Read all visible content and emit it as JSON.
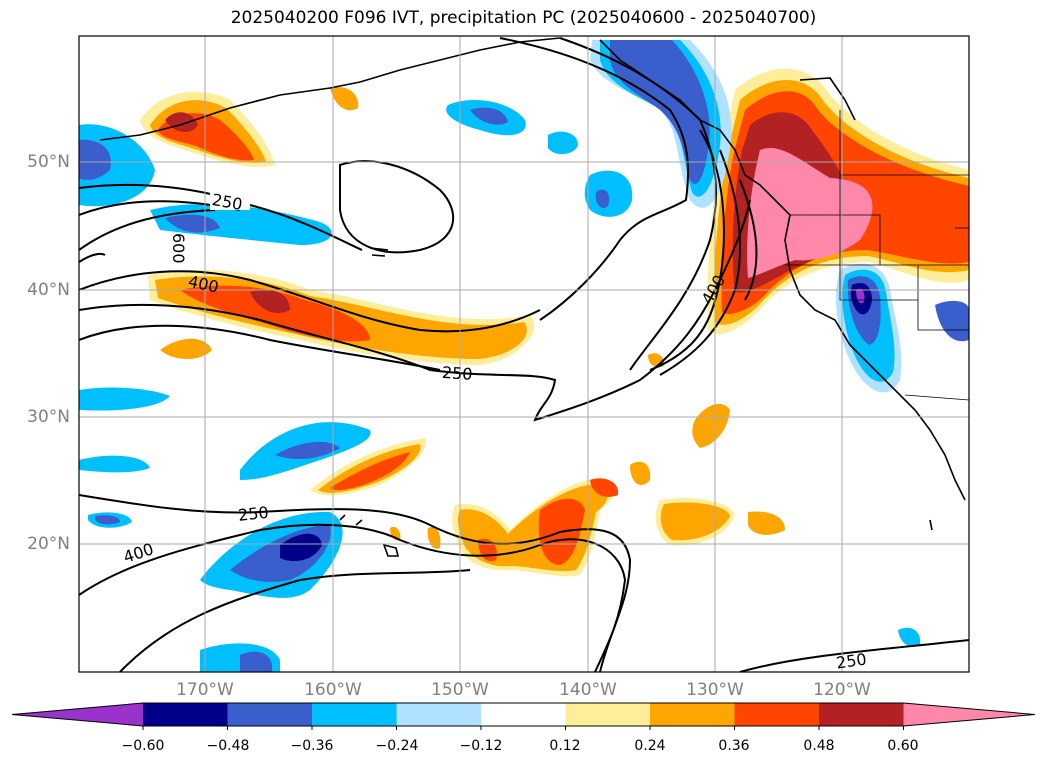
{
  "title": "2025040200 F096 IVT, precipitation PC (2025040600 - 2025040700)",
  "map": {
    "lat_labels": [
      "50°N",
      "40°N",
      "30°N",
      "20°N"
    ],
    "lon_labels": [
      "170°W",
      "160°W",
      "150°W",
      "140°W",
      "130°W",
      "120°W"
    ],
    "contour_labels": [
      "250",
      "600",
      "400",
      "400",
      "250",
      "250",
      "400",
      "250"
    ]
  },
  "colorbar": {
    "ticks": [
      "−0.60",
      "−0.48",
      "−0.36",
      "−0.24",
      "−0.12",
      "0.12",
      "0.24",
      "0.36",
      "0.48",
      "0.60"
    ],
    "colors": [
      "#9933cc",
      "#00008b",
      "#3a5fcd",
      "#00bfff",
      "#b0e2ff",
      "#ffffff",
      "#ffee99",
      "#ffa500",
      "#ff4500",
      "#b22222",
      "#ff88aa"
    ]
  }
}
